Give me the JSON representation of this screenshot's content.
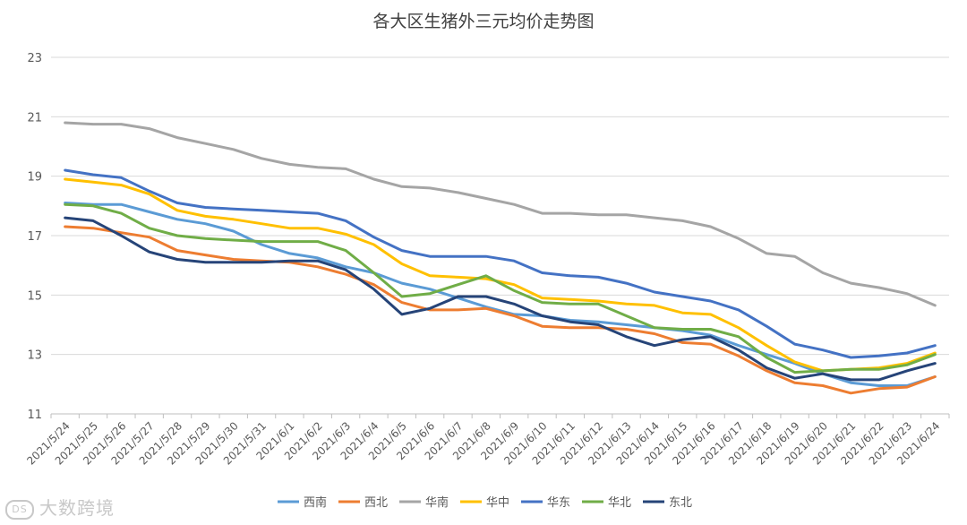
{
  "chart_data": {
    "type": "line",
    "title": "各大区生猪外三元均价走势图",
    "xlabel": "",
    "ylabel": "",
    "ylim": [
      11,
      23
    ],
    "yticks": [
      11,
      13,
      15,
      17,
      19,
      21,
      23
    ],
    "grid": true,
    "legend_position": "bottom",
    "categories": [
      "2021/5/24",
      "2021/5/25",
      "2021/5/26",
      "2021/5/27",
      "2021/5/28",
      "2021/5/29",
      "2021/5/30",
      "2021/5/31",
      "2021/6/1",
      "2021/6/2",
      "2021/6/3",
      "2021/6/4",
      "2021/6/5",
      "2021/6/6",
      "2021/6/7",
      "2021/6/8",
      "2021/6/9",
      "2021/6/10",
      "2021/6/11",
      "2021/6/12",
      "2021/6/13",
      "2021/6/14",
      "2021/6/15",
      "2021/6/16",
      "2021/6/17",
      "2021/6/18",
      "2021/6/19",
      "2021/6/20",
      "2021/6/21",
      "2021/6/22",
      "2021/6/23",
      "2021/6/24"
    ],
    "series": [
      {
        "name": "西南",
        "color": "#5b9bd5",
        "values": [
          18.1,
          18.05,
          18.05,
          17.8,
          17.55,
          17.4,
          17.15,
          16.7,
          16.4,
          16.25,
          15.95,
          15.75,
          15.4,
          15.2,
          14.9,
          14.6,
          14.35,
          14.3,
          14.15,
          14.1,
          14.0,
          13.9,
          13.8,
          13.65,
          13.3,
          13.0,
          12.7,
          12.35,
          12.05,
          11.95,
          11.95,
          12.25
        ]
      },
      {
        "name": "西北",
        "color": "#ed7d31",
        "values": [
          17.3,
          17.25,
          17.1,
          16.95,
          16.5,
          16.35,
          16.2,
          16.15,
          16.1,
          15.95,
          15.7,
          15.35,
          14.75,
          14.5,
          14.5,
          14.55,
          14.3,
          13.95,
          13.9,
          13.9,
          13.85,
          13.7,
          13.4,
          13.35,
          12.95,
          12.45,
          12.05,
          11.95,
          11.7,
          11.85,
          11.9,
          12.25
        ]
      },
      {
        "name": "华南",
        "color": "#a5a5a5",
        "values": [
          20.8,
          20.75,
          20.75,
          20.6,
          20.3,
          20.1,
          19.9,
          19.6,
          19.4,
          19.3,
          19.25,
          18.9,
          18.65,
          18.6,
          18.45,
          18.25,
          18.05,
          17.75,
          17.75,
          17.7,
          17.7,
          17.6,
          17.5,
          17.3,
          16.9,
          16.4,
          16.3,
          15.75,
          15.4,
          15.25,
          15.05,
          14.65
        ]
      },
      {
        "name": "华中",
        "color": "#ffc000",
        "values": [
          18.9,
          18.8,
          18.7,
          18.4,
          17.85,
          17.65,
          17.55,
          17.4,
          17.25,
          17.25,
          17.05,
          16.7,
          16.05,
          15.65,
          15.6,
          15.55,
          15.35,
          14.9,
          14.85,
          14.8,
          14.7,
          14.65,
          14.4,
          14.35,
          13.9,
          13.3,
          12.75,
          12.45,
          12.5,
          12.55,
          12.7,
          13.05
        ]
      },
      {
        "name": "华东",
        "color": "#4472c4",
        "values": [
          19.2,
          19.05,
          18.95,
          18.5,
          18.1,
          17.95,
          17.9,
          17.85,
          17.8,
          17.75,
          17.5,
          16.95,
          16.5,
          16.3,
          16.3,
          16.3,
          16.15,
          15.75,
          15.65,
          15.6,
          15.4,
          15.1,
          14.95,
          14.8,
          14.5,
          13.95,
          13.35,
          13.15,
          12.9,
          12.95,
          13.05,
          13.3
        ]
      },
      {
        "name": "华北",
        "color": "#70ad47",
        "values": [
          18.05,
          18.0,
          17.75,
          17.25,
          17.0,
          16.9,
          16.85,
          16.8,
          16.8,
          16.8,
          16.5,
          15.75,
          14.95,
          15.05,
          15.35,
          15.65,
          15.15,
          14.75,
          14.7,
          14.7,
          14.3,
          13.9,
          13.85,
          13.85,
          13.6,
          12.9,
          12.4,
          12.45,
          12.5,
          12.5,
          12.65,
          13.0
        ]
      },
      {
        "name": "东北",
        "color": "#264478",
        "values": [
          17.6,
          17.5,
          17.0,
          16.45,
          16.2,
          16.1,
          16.1,
          16.1,
          16.15,
          16.15,
          15.85,
          15.2,
          14.35,
          14.55,
          14.95,
          14.95,
          14.7,
          14.3,
          14.1,
          14.0,
          13.6,
          13.3,
          13.5,
          13.6,
          13.15,
          12.55,
          12.2,
          12.35,
          12.15,
          12.15,
          12.45,
          12.7
        ]
      }
    ]
  },
  "watermark": "大数跨境",
  "watermark_logo_text": "DS"
}
